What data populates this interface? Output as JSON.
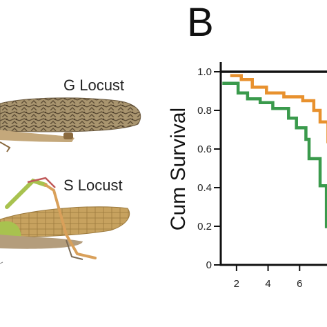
{
  "panel_letter": "B",
  "photo_labels": {
    "g_locust": "G Locust",
    "s_locust": "S Locust"
  },
  "chart_data": {
    "type": "line",
    "step": true,
    "title": "",
    "xlabel": "",
    "ylabel": "Cum Survival",
    "xlim": [
      1,
      8
    ],
    "ylim": [
      0,
      1.05
    ],
    "x_ticks": [
      2,
      4,
      6
    ],
    "x_tick_labels": [
      "2",
      "4",
      "6"
    ],
    "y_ticks": [
      0,
      0.2,
      0.4,
      0.6,
      0.8,
      1.0
    ],
    "y_tick_labels": [
      "0",
      "0.2",
      "0.4",
      "0.6",
      "0.8",
      "1.0"
    ],
    "grid": false,
    "series": [
      {
        "color": "#111111",
        "x": [
          1,
          8
        ],
        "y": [
          1.0,
          1.0
        ]
      },
      {
        "color": "#e8912e",
        "x": [
          1.6,
          2.3,
          3.0,
          3.9,
          5.0,
          6.2,
          6.9,
          7.3,
          7.8
        ],
        "y": [
          0.98,
          0.96,
          0.92,
          0.89,
          0.87,
          0.85,
          0.8,
          0.74,
          0.63
        ]
      },
      {
        "color": "#3a9a4c",
        "x": [
          1.1,
          2.1,
          2.7,
          3.5,
          4.3,
          5.3,
          5.8,
          6.4,
          6.6,
          7.3,
          7.7
        ],
        "y": [
          0.94,
          0.89,
          0.86,
          0.84,
          0.81,
          0.76,
          0.71,
          0.65,
          0.55,
          0.41,
          0.19
        ]
      }
    ]
  },
  "colors": {
    "wing_brown": "#a9956f",
    "wing_dark": "#5e4e37",
    "body_tan": "#c4a87b",
    "leg_green": "#a8c24f",
    "leg_orange": "#d9a05a"
  }
}
